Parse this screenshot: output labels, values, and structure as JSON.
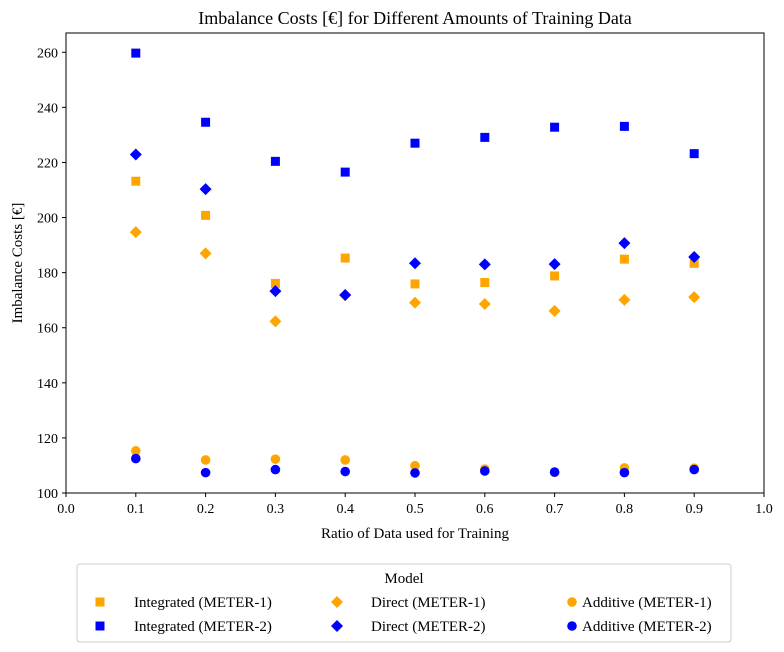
{
  "chart_data": {
    "type": "scatter",
    "title": "Imbalance Costs [€] for Different Amounts of Training Data",
    "xlabel": "Ratio of Data used for Training",
    "ylabel": "Imbalance Costs [€]",
    "xlim": [
      0.0,
      1.0
    ],
    "ylim": [
      100,
      267
    ],
    "xticks": [
      0.0,
      0.1,
      0.2,
      0.3,
      0.4,
      0.5,
      0.6,
      0.7,
      0.8,
      0.9,
      1.0
    ],
    "xtick_labels": [
      "0.0",
      "0.1",
      "0.2",
      "0.3",
      "0.4",
      "0.5",
      "0.6",
      "0.7",
      "0.8",
      "0.9",
      "1.0"
    ],
    "yticks": [
      100,
      120,
      140,
      160,
      180,
      200,
      220,
      240,
      260
    ],
    "ytick_labels": [
      "100",
      "120",
      "140",
      "160",
      "180",
      "200",
      "220",
      "240",
      "260"
    ],
    "grid": false,
    "legend": {
      "title": "Model",
      "placement": "below",
      "columns": 3
    },
    "x": [
      0.1,
      0.2,
      0.3,
      0.4,
      0.5,
      0.6,
      0.7,
      0.8,
      0.9
    ],
    "series": [
      {
        "name": "Integrated (METER-1)",
        "marker": "square",
        "color": "#FFA500",
        "values": [
          213.2,
          200.8,
          176.1,
          185.3,
          175.9,
          176.4,
          178.8,
          184.9,
          183.4
        ]
      },
      {
        "name": "Integrated (METER-2)",
        "marker": "square",
        "color": "#0000FF",
        "values": [
          259.7,
          234.6,
          220.4,
          216.5,
          227.0,
          229.1,
          232.8,
          233.1,
          223.2
        ]
      },
      {
        "name": "Direct (METER-1)",
        "marker": "diamond",
        "color": "#FFA500",
        "values": [
          194.7,
          187.0,
          162.3,
          171.8,
          169.1,
          168.6,
          166.1,
          170.1,
          171.1
        ]
      },
      {
        "name": "Direct (METER-2)",
        "marker": "diamond",
        "color": "#0000FF",
        "values": [
          222.9,
          210.3,
          173.3,
          171.9,
          183.4,
          183.0,
          183.1,
          190.7,
          185.7
        ]
      },
      {
        "name": "Additive (METER-1)",
        "marker": "circle",
        "color": "#FFA500",
        "values": [
          115.3,
          112.0,
          112.3,
          112.0,
          109.9,
          108.7,
          107.5,
          109.1,
          109.0
        ]
      },
      {
        "name": "Additive (METER-2)",
        "marker": "circle",
        "color": "#0000FF",
        "values": [
          112.5,
          107.4,
          108.5,
          107.8,
          107.3,
          108.0,
          107.6,
          107.4,
          108.5
        ]
      }
    ]
  }
}
